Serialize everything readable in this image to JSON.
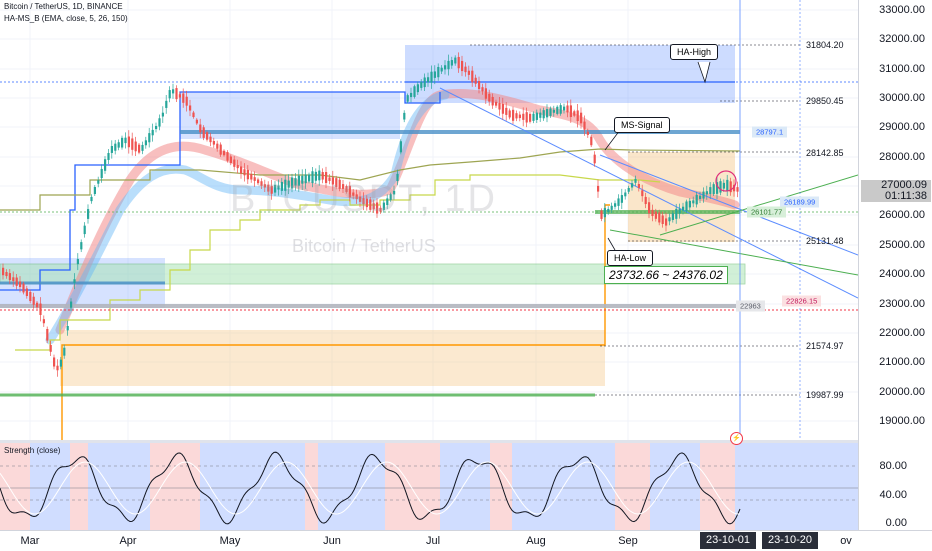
{
  "legend": {
    "symbol_line": "Bitcoin / TetherUS, 1D, BINANCE",
    "indicator_line": "HA-MS_B (EMA, close, 5, 26, 150)",
    "sub_indicator": "Strength (close)"
  },
  "watermark": {
    "main": "BTCUSDT, 1D",
    "sub": "Bitcoin / TetherUS"
  },
  "price_axis": {
    "ticks": [
      "33000.00",
      "32000.00",
      "31000.00",
      "30000.00",
      "29000.00",
      "28000.00",
      "27000.00",
      "26000.00",
      "25000.00",
      "24000.00",
      "23000.00",
      "22000.00",
      "21000.00",
      "20000.00",
      "19000.00"
    ],
    "last_price": "27000.09",
    "countdown": "01:11:38"
  },
  "indicator_axis": {
    "ticks": [
      "80.00",
      "40.00",
      "0.00"
    ]
  },
  "price_labels": [
    {
      "text": "31804.20",
      "price": 31804.2
    },
    {
      "text": "29850.45",
      "price": 29850.45
    },
    {
      "text": "28142.85",
      "price": 28142.85
    },
    {
      "text": "25131.48",
      "price": 25131.48
    },
    {
      "text": "21574.97",
      "price": 21574.97
    },
    {
      "text": "19987.99",
      "price": 19987.99
    }
  ],
  "tags": {
    "ms_signal_value": "28797.1",
    "blue_value": "26189.99",
    "green_value": "26101.77",
    "gray_value": "22963",
    "red_value": "22826.15"
  },
  "callouts": {
    "ha_high": "HA-High",
    "ms_signal": "MS-Signal",
    "ha_low": "HA-Low",
    "zone": "23732.66 ~ 24376.02"
  },
  "time_axis": {
    "labels": [
      "Mar",
      "Apr",
      "May",
      "Jun",
      "Jul",
      "Aug",
      "Sep"
    ],
    "badge_1": "23-10-01",
    "badge_2": "23-10-20",
    "trail": "ov"
  },
  "flag_icon": "lightning-icon",
  "colors": {
    "up": "#26a69a",
    "down": "#ef5350",
    "ha_blue": "#2962ff",
    "ema_red": "#f28b8b",
    "ema_blue": "#64b5f6",
    "olive": "#b5b84a",
    "orange": "#ff9800",
    "green_zone": "#4caf50"
  }
}
